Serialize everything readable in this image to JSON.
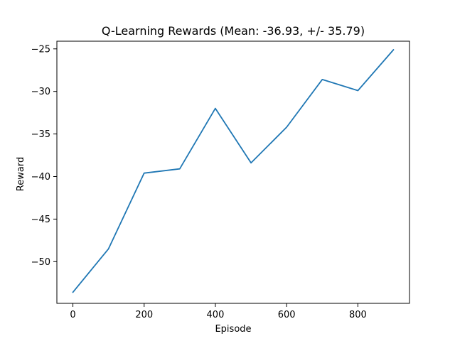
{
  "chart_data": {
    "type": "line",
    "title": "Q-Learning Rewards (Mean: -36.93, +/- 35.79)",
    "xlabel": "Episode",
    "ylabel": "Reward",
    "xlim": [
      -45,
      945
    ],
    "ylim": [
      -54.9,
      -24.1
    ],
    "xticks": [
      0,
      200,
      400,
      600,
      800
    ],
    "xtick_labels": [
      "0",
      "200",
      "400",
      "600",
      "800"
    ],
    "yticks": [
      -50,
      -45,
      -40,
      -35,
      -30,
      -25
    ],
    "ytick_labels": [
      "−50",
      "−45",
      "−40",
      "−35",
      "−30",
      "−25"
    ],
    "grid": false,
    "legend": "none",
    "series": [
      {
        "color": "#1f77b4",
        "x": [
          0,
          100,
          200,
          300,
          400,
          500,
          600,
          700,
          800,
          900
        ],
        "y": [
          -53.6,
          -48.5,
          -39.6,
          -39.1,
          -32.0,
          -38.4,
          -34.2,
          -28.6,
          -29.9,
          -25.1
        ]
      }
    ]
  }
}
